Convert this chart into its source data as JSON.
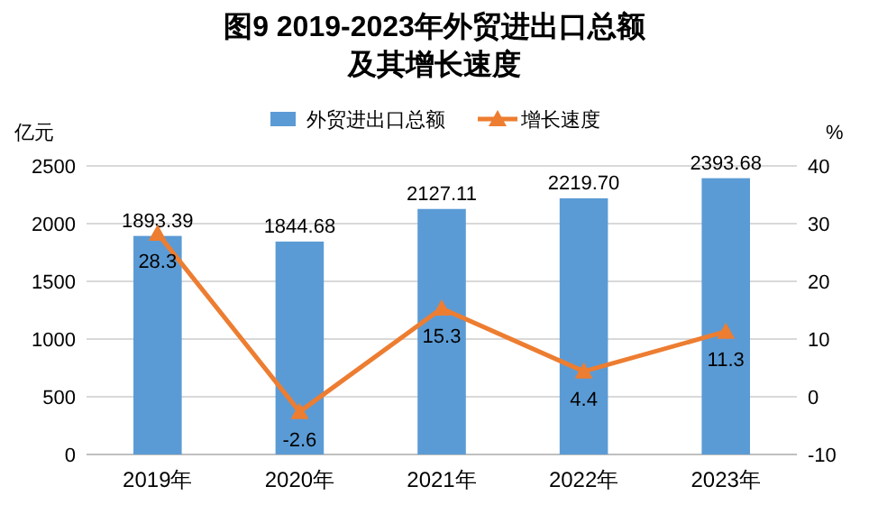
{
  "chart_data": {
    "type": "bar",
    "title": "图9  2019-2023年外贸进出口总额",
    "subtitle": "及其增长速度",
    "ylabel": "亿元",
    "y2label": "%",
    "categories": [
      "2019年",
      "2020年",
      "2021年",
      "2022年",
      "2023年"
    ],
    "series": [
      {
        "name": "外贸进出口总额",
        "color": "#5b9bd5",
        "values": [
          1893.39,
          1844.68,
          2127.11,
          2219.7,
          2393.68
        ],
        "value_labels": [
          "1893.39",
          "1844.68",
          "2127.11",
          "2219.70",
          "2393.68"
        ]
      },
      {
        "name": "增长速度",
        "type": "line",
        "axis": "y2",
        "color": "#ed7d31",
        "marker": "triangle",
        "values": [
          28.3,
          -2.6,
          15.3,
          4.4,
          11.3
        ],
        "value_labels": [
          "28.3",
          "-2.6",
          "15.3",
          "4.4",
          "11.3"
        ]
      }
    ],
    "ylim": [
      0,
      2500
    ],
    "yticks": [
      0,
      500,
      1000,
      1500,
      2000,
      2500
    ],
    "y2lim": [
      -10,
      40
    ],
    "y2ticks": [
      -10,
      0,
      10,
      20,
      30,
      40
    ],
    "grid": "y",
    "legend": "top"
  }
}
